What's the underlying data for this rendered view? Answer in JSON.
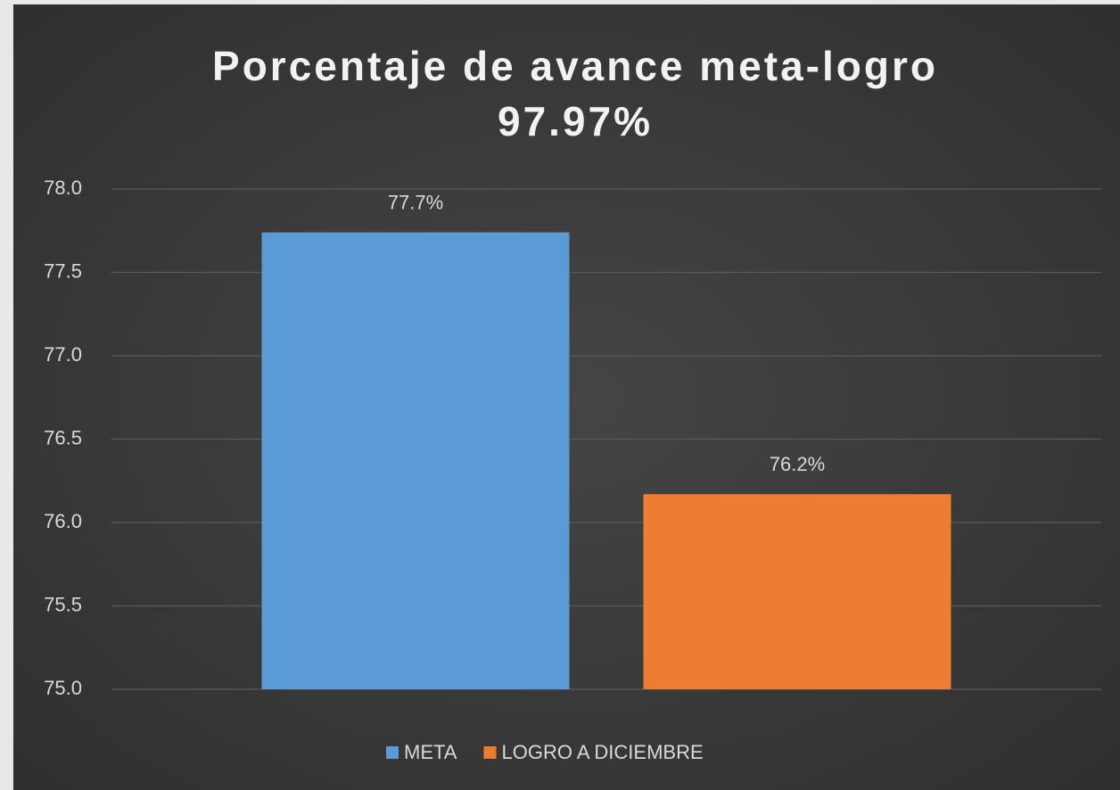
{
  "chart_data": {
    "type": "bar",
    "title": "Porcentaje de avance meta-logro",
    "subtitle": "97.97%",
    "categories": [
      null
    ],
    "series": [
      {
        "name": "META",
        "color": "#5b9bd5",
        "values": [
          77.74
        ],
        "value_labels": [
          "77.7%"
        ]
      },
      {
        "name": "LOGRO A DICIEMBRE",
        "color": "#ed7d31",
        "values": [
          76.17
        ],
        "value_labels": [
          "76.2%"
        ]
      }
    ],
    "ylim": [
      75,
      78
    ],
    "yticks": [
      {
        "value": 75,
        "label": "75.0"
      },
      {
        "value": 75.5,
        "label": "75.5"
      },
      {
        "value": 76,
        "label": "76.0"
      },
      {
        "value": 76.5,
        "label": "76.5"
      },
      {
        "value": 77,
        "label": "77.0"
      },
      {
        "value": 77.5,
        "label": "77.5"
      },
      {
        "value": 78,
        "label": "78.0"
      }
    ],
    "grid": true,
    "legend": "bottom"
  }
}
